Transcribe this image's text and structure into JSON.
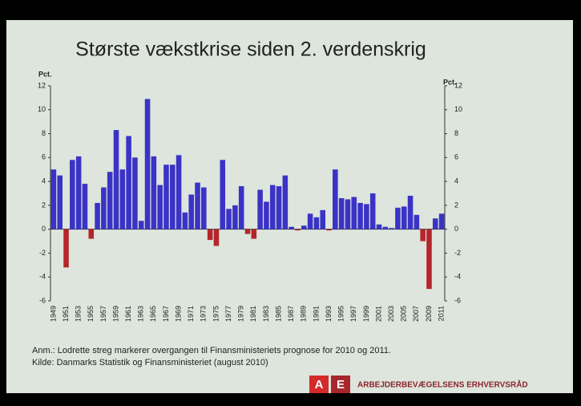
{
  "chart_data": {
    "type": "bar",
    "title": "Største vækstkrise siden 2. verdenskrig",
    "y_label": "Pct.",
    "y2_label": "Pct.",
    "categories": [
      "1949",
      null,
      "1951",
      null,
      "1953",
      null,
      "1955",
      null,
      "1957",
      null,
      "1959",
      null,
      "1961",
      null,
      "1963",
      null,
      "1965",
      null,
      "1967",
      null,
      "1969",
      null,
      "1971",
      null,
      "1973",
      null,
      "1975",
      null,
      "1977",
      null,
      "1979",
      null,
      "1981",
      null,
      "1983",
      null,
      "1985",
      null,
      "1987",
      null,
      "1989",
      null,
      "1991",
      null,
      "1993",
      null,
      "1995",
      null,
      "1997",
      null,
      "1999",
      null,
      "2001",
      null,
      "2003",
      null,
      "2005",
      null,
      "2007",
      null,
      "2009",
      null,
      "2011"
    ],
    "values": [
      5.0,
      4.5,
      -3.2,
      5.8,
      6.1,
      3.8,
      -0.8,
      2.2,
      3.5,
      4.8,
      8.3,
      5.0,
      7.8,
      6.0,
      0.7,
      10.9,
      6.1,
      3.7,
      5.4,
      5.4,
      6.2,
      1.4,
      2.9,
      3.9,
      3.5,
      -0.9,
      -1.4,
      5.8,
      1.7,
      2.0,
      3.6,
      -0.4,
      -0.8,
      3.3,
      2.3,
      3.7,
      3.6,
      4.5,
      0.2,
      -0.1,
      0.3,
      1.3,
      1.0,
      1.6,
      -0.1,
      5.0,
      2.6,
      2.5,
      2.7,
      2.2,
      2.1,
      3.0,
      0.4,
      0.2,
      0.1,
      1.8,
      1.9,
      2.8,
      1.2,
      -1.0,
      -5.0,
      0.9,
      1.3
    ],
    "colors": {
      "positive": "#3a33c6",
      "negative": "#b3262b"
    },
    "ylim": [
      -6,
      12
    ],
    "yticks": [
      -6,
      -4,
      -2,
      0,
      2,
      4,
      6,
      8,
      10,
      12
    ],
    "y2lim": [
      -6,
      12
    ],
    "y2ticks": [
      -6,
      -4,
      -2,
      0,
      2,
      4,
      6,
      8,
      10,
      12
    ],
    "notes": [
      "Anm.: Lodrette streg markerer overgangen til Finansministeriets prognose for 2010 og 2011.",
      "Kilde: Danmarks Statistik og Finansministeriet (august 2010)"
    ],
    "logo": {
      "letters": [
        "A",
        "E"
      ],
      "name": "ARBEJDERBEVÆGELSENS ERHVERVSRÅD"
    }
  }
}
